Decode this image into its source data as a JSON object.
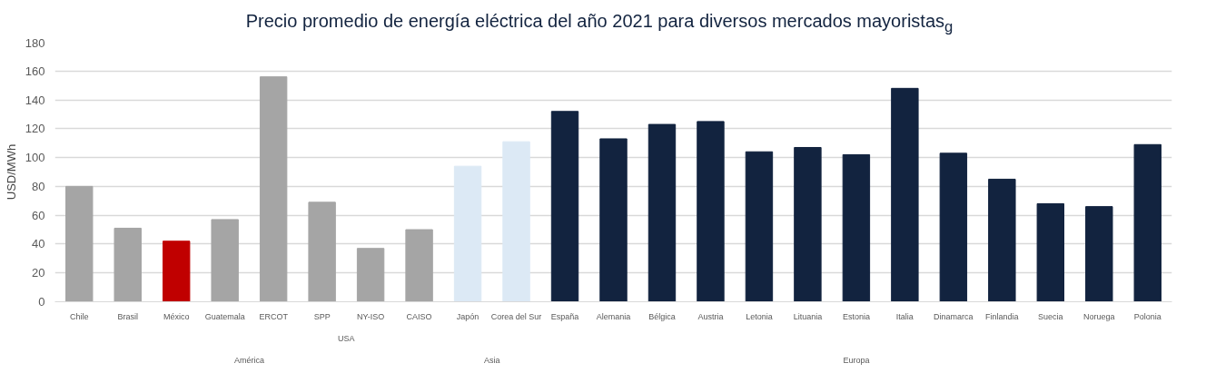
{
  "chart_data": {
    "type": "bar",
    "title": "Precio promedio de energía eléctrica del año 2021 para diversos mercados mayoristas$_{g}$",
    "ylabel": "USD/MWh",
    "categories": [
      "Chile",
      "Brasil",
      "México",
      "Guatemala",
      "ERCOT",
      "SPP",
      "NY-ISO",
      "CAISO",
      "Japón",
      "Corea del Sur",
      "España",
      "Alemania",
      "Bélgica",
      "Austria",
      "Letonia",
      "Lituania",
      "Estonia",
      "Italia",
      "Dinamarca",
      "Finlandia",
      "Suecia",
      "Noruega",
      "Polonia"
    ],
    "values": [
      80,
      51,
      42,
      57,
      156,
      69,
      37,
      50,
      94,
      111,
      132,
      113,
      123,
      125,
      104,
      107,
      102,
      148,
      103,
      85,
      68,
      66,
      109
    ],
    "colors": [
      "#a5a5a5",
      "#a5a5a5",
      "#c00000",
      "#a5a5a5",
      "#a5a5a5",
      "#a5a5a5",
      "#a5a5a5",
      "#a5a5a5",
      "#dce9f5",
      "#dce9f5",
      "#12233f",
      "#12233f",
      "#12233f",
      "#12233f",
      "#12233f",
      "#12233f",
      "#12233f",
      "#12233f",
      "#12233f",
      "#12233f",
      "#12233f",
      "#12233f",
      "#12233f"
    ],
    "annotations": [
      "USA",
      "América",
      "Asia",
      "Europa"
    ],
    "ylim": [
      0,
      180
    ],
    "yticks": [
      0,
      20,
      40,
      60,
      80,
      100,
      120,
      140,
      160,
      180
    ],
    "grid": "y"
  }
}
